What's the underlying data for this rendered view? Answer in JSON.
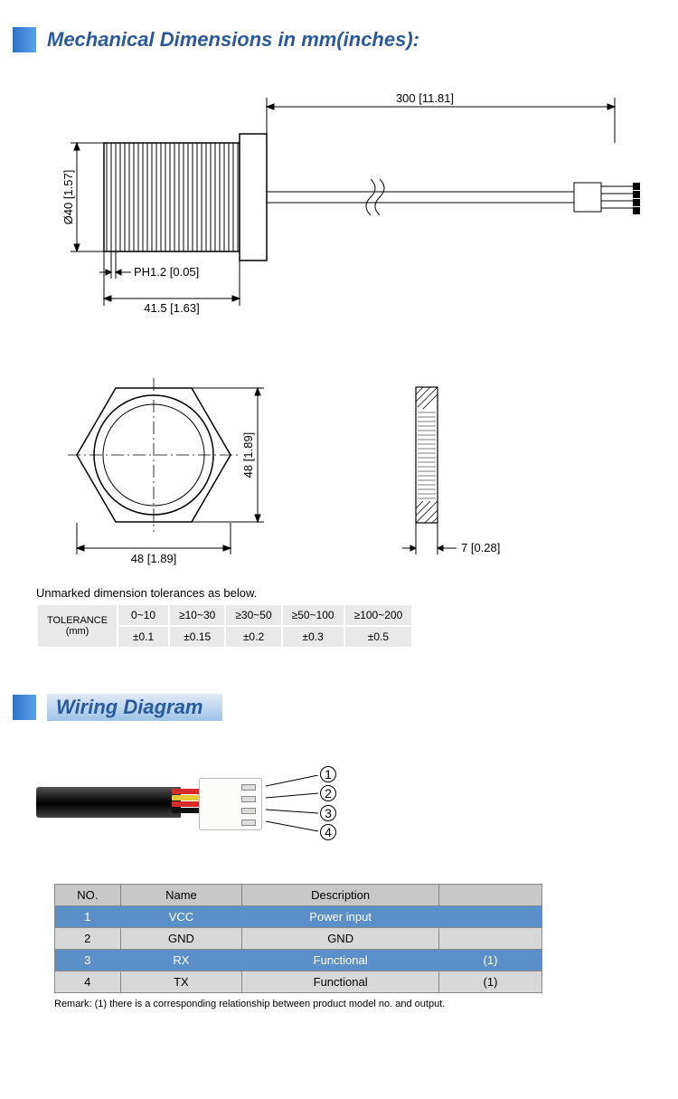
{
  "section1": {
    "title": "Mechanical Dimensions in mm(inches):"
  },
  "section2": {
    "title": "Wiring Diagram"
  },
  "dims": {
    "cable_len": "300  [11.81]",
    "diameter": "Ø40  [1.57]",
    "pitch": "PH1.2  [0.05]",
    "body_len": "41.5  [1.63]",
    "hex_w": "48  [1.89]",
    "hex_h": "48  [1.89]",
    "ring_t": "7  [0.28]"
  },
  "tol_note": "Unmarked dimension tolerances as below.",
  "tolerance": {
    "label": "TOLERANCE",
    "unit": "(mm)",
    "ranges": [
      "0~10",
      "≥10~30",
      "≥30~50",
      "≥50~100",
      "≥100~200"
    ],
    "values": [
      "±0.1",
      "±0.15",
      "±0.2",
      "±0.3",
      "±0.5"
    ]
  },
  "wiring": {
    "wire_colors": [
      "#d82a2a",
      "#e6c838",
      "#d82a2a",
      "#111"
    ],
    "pins": [
      "①",
      "②",
      "③",
      "④"
    ],
    "table": {
      "headers": [
        "NO.",
        "Name",
        "Description",
        ""
      ],
      "rows": [
        {
          "cells": [
            "1",
            "VCC",
            "Power input",
            ""
          ],
          "cls": "blue"
        },
        {
          "cells": [
            "2",
            "GND",
            "GND",
            ""
          ],
          "cls": "gray"
        },
        {
          "cells": [
            "3",
            "RX",
            "Functional",
            "(1)"
          ],
          "cls": "blue"
        },
        {
          "cells": [
            "4",
            "TX",
            "Functional",
            "(1)"
          ],
          "cls": "gray"
        }
      ]
    },
    "remark": "Remark: (1) there is a corresponding relationship between product model no. and output."
  },
  "colors": {
    "accent": "#2a5a9e",
    "line": "#000"
  }
}
